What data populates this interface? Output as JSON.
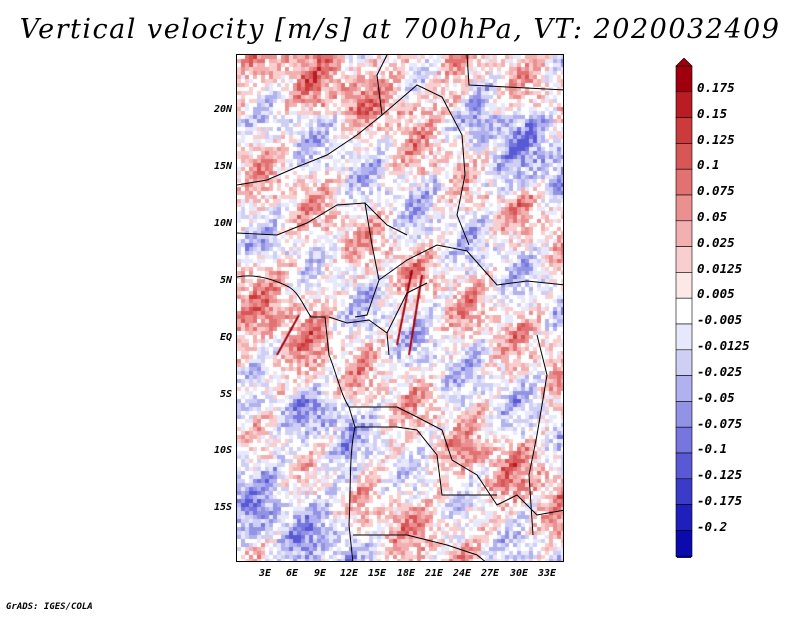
{
  "title": "Vertical velocity [m/s] at 700hPa, VT: 2020032409",
  "footer": "GrADS: IGES/COLA",
  "lat_labels": [
    "20N",
    "15N",
    "10N",
    "5N",
    "EQ",
    "5S",
    "10S",
    "15S"
  ],
  "lon_labels": [
    "3E",
    "6E",
    "9E",
    "12E",
    "15E",
    "18E",
    "21E",
    "24E",
    "27E",
    "30E",
    "33E"
  ],
  "colorbar": {
    "labels": [
      "0.175",
      "0.15",
      "0.125",
      "0.1",
      "0.075",
      "0.05",
      "0.025",
      "0.0125",
      "0.005",
      "-0.005",
      "-0.0125",
      "-0.025",
      "-0.05",
      "-0.075",
      "-0.1",
      "-0.125",
      "-0.175",
      "-0.2"
    ],
    "colors": [
      "#a0000e",
      "#b91c22",
      "#cc3b3b",
      "#d85656",
      "#e27272",
      "#eb9090",
      "#f3b0b0",
      "#f9cece",
      "#fde8e8",
      "#ffffff",
      "#e8e8fc",
      "#cfcff6",
      "#b1b1ef",
      "#9393e6",
      "#7676de",
      "#5959d5",
      "#3b3bca",
      "#1f1fbe",
      "#0b0bad"
    ]
  }
}
